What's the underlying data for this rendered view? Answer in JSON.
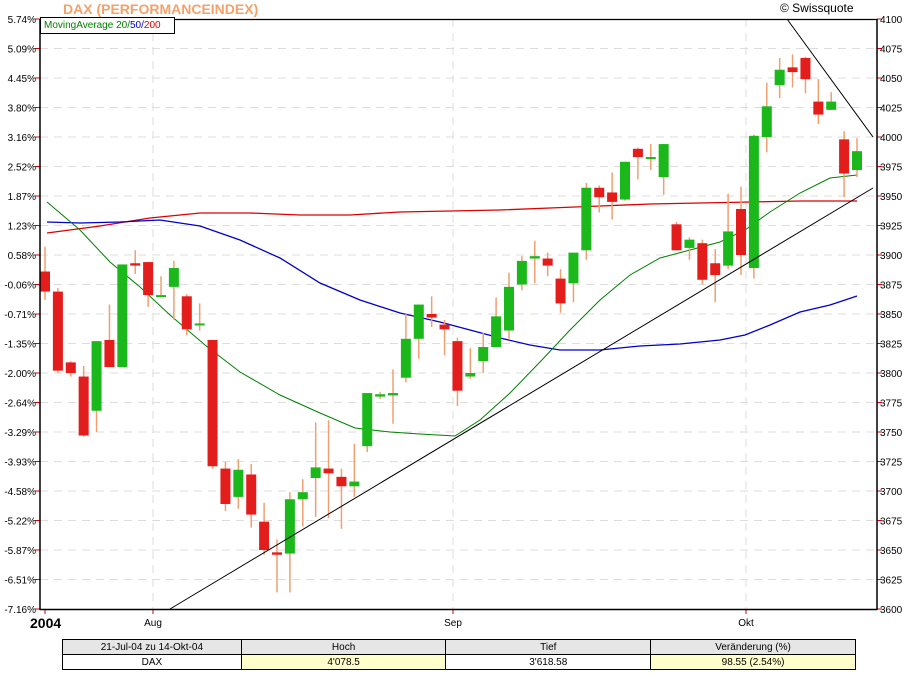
{
  "header": {
    "title": "DAX (PERFORMANCEINDEX)",
    "copyright": "© Swissquote"
  },
  "legend": {
    "label": "MovingAverage",
    "ma20": "20",
    "ma50": "50",
    "ma200": "200",
    "colors": {
      "label": "#008000",
      "ma20": "#008000",
      "ma50": "#0000cc",
      "ma200": "#dd0000"
    }
  },
  "colors": {
    "up": "#1ab81a",
    "down": "#e31c1c",
    "wick": "#f0a070",
    "ma20": "#008000",
    "ma50": "#0000cc",
    "ma200": "#dd0000",
    "trend": "#000000",
    "grid": "#dddddd",
    "tick": "#dd0000"
  },
  "chart_data": {
    "type": "candlestick",
    "title": "DAX (PERFORMANCEINDEX)",
    "x_labels": [
      {
        "label": "2004",
        "bold": true
      },
      {
        "label": "Aug"
      },
      {
        "label": "Sep"
      },
      {
        "label": "Okt"
      }
    ],
    "y_left_ticks": [
      "5.74%",
      "5.09%",
      "4.45%",
      "3.80%",
      "3.16%",
      "2.52%",
      "1.87%",
      "1.23%",
      "0.58%",
      "-0.06%",
      "-0.71%",
      "-1.35%",
      "-2.00%",
      "-2.64%",
      "-3.29%",
      "-3.93%",
      "-4.58%",
      "-5.22%",
      "-5.87%",
      "-6.51%",
      "-7.16%"
    ],
    "y_right_ticks": [
      "4100",
      "4075",
      "4050",
      "4025",
      "4000",
      "3975",
      "3950",
      "3925",
      "3900",
      "3875",
      "3850",
      "3825",
      "3800",
      "3775",
      "3750",
      "3725",
      "3700",
      "3675",
      "3650",
      "3625",
      "3600"
    ],
    "ylim": [
      3600,
      4100
    ],
    "grid": true,
    "candles": [
      [
        3886,
        3907,
        3862,
        3869
      ],
      [
        3869,
        3872,
        3800,
        3802
      ],
      [
        3809,
        3810,
        3797,
        3800
      ],
      [
        3797,
        3806,
        3746,
        3747
      ],
      [
        3768,
        3827,
        3750,
        3827
      ],
      [
        3828,
        3858,
        3813,
        3805
      ],
      [
        3805,
        3887,
        3805,
        3892
      ],
      [
        3893,
        3904,
        3884,
        3891
      ],
      [
        3894,
        3880,
        3856,
        3866
      ],
      [
        3865,
        3882,
        3868,
        3866
      ],
      [
        3873,
        3895,
        3845,
        3889
      ],
      [
        3865,
        3867,
        3832,
        3837
      ],
      [
        3842,
        3859,
        3836,
        3842
      ],
      [
        3828,
        3828,
        3719,
        3721
      ],
      [
        3719,
        3725,
        3683,
        3689
      ],
      [
        3695,
        3727,
        3685,
        3718
      ],
      [
        3714,
        3723,
        3669,
        3680
      ],
      [
        3674,
        3690,
        3646,
        3650
      ],
      [
        3648,
        3659,
        3614,
        3646
      ],
      [
        3647,
        3699,
        3614,
        3693
      ],
      [
        3693,
        3710,
        3670,
        3699
      ],
      [
        3711,
        3758,
        3678,
        3720
      ],
      [
        3719,
        3760,
        3677,
        3715
      ],
      [
        3712,
        3719,
        3668,
        3704
      ],
      [
        3704,
        3740,
        3695,
        3708
      ],
      [
        3738,
        3780,
        3733,
        3783
      ],
      [
        3780,
        3784,
        3778,
        3782
      ],
      [
        3781,
        3803,
        3757,
        3783
      ],
      [
        3796,
        3850,
        3792,
        3829
      ],
      [
        3829,
        3843,
        3812,
        3858
      ],
      [
        3850,
        3865,
        3839,
        3847
      ],
      [
        3841,
        3845,
        3815,
        3837
      ],
      [
        3827,
        3830,
        3772,
        3785
      ],
      [
        3797,
        3821,
        3795,
        3800
      ],
      [
        3810,
        3834,
        3800,
        3822
      ],
      [
        3822,
        3864,
        3833,
        3848
      ],
      [
        3836,
        3885,
        3829,
        3873
      ],
      [
        3875,
        3899,
        3870,
        3895
      ],
      [
        3897,
        3912,
        3876,
        3899
      ],
      [
        3897,
        3902,
        3882,
        3891
      ],
      [
        3880,
        3888,
        3851,
        3859
      ],
      [
        3876,
        3895,
        3860,
        3902
      ],
      [
        3904,
        3961,
        3896,
        3957
      ],
      [
        3957,
        3959,
        3936,
        3949
      ],
      [
        3953,
        3970,
        3930,
        3945
      ],
      [
        3947,
        3968,
        3946,
        3979
      ],
      [
        3990,
        3991,
        3964,
        3983
      ],
      [
        3983,
        3994,
        3972,
        3983
      ],
      [
        3966,
        3960,
        3951,
        3994
      ],
      [
        3926,
        3928,
        3905,
        3904
      ],
      [
        3906,
        3915,
        3896,
        3913
      ],
      [
        3910,
        3913,
        3875,
        3879
      ],
      [
        3893,
        3905,
        3860,
        3883
      ],
      [
        3891,
        3952,
        3888,
        3920
      ],
      [
        3939,
        3958,
        3883,
        3900
      ],
      [
        3889,
        4002,
        3880,
        4001
      ],
      [
        4000,
        4046,
        3987,
        4026
      ],
      [
        4044,
        4067,
        4033,
        4057
      ],
      [
        4059,
        4070,
        4042,
        4055
      ],
      [
        4067,
        4068,
        4037,
        4049
      ],
      [
        4030,
        4049,
        4011,
        4019
      ],
      [
        4023,
        4038,
        4024,
        4030
      ],
      [
        3998,
        4005,
        3949,
        3969
      ],
      [
        3972,
        3999,
        3966,
        3988
      ]
    ],
    "moving_averages": {
      "ma20_color": "#008000",
      "ma50_color": "#0000cc",
      "ma200_color": "#dd0000"
    },
    "summary": {
      "period": "21-Jul-04 zu 14-Okt-04",
      "instrument": "DAX",
      "high": "4'078.5",
      "low": "3'618.58",
      "change": "98.55 (2.54%)"
    }
  },
  "table": {
    "headers": [
      "21-Jul-04 zu 14-Okt-04",
      "Hoch",
      "Tief",
      "Veränderung (%)"
    ],
    "row": [
      "DAX",
      "4'078.5",
      "3'618.58",
      "98.55 (2.54%)"
    ]
  }
}
